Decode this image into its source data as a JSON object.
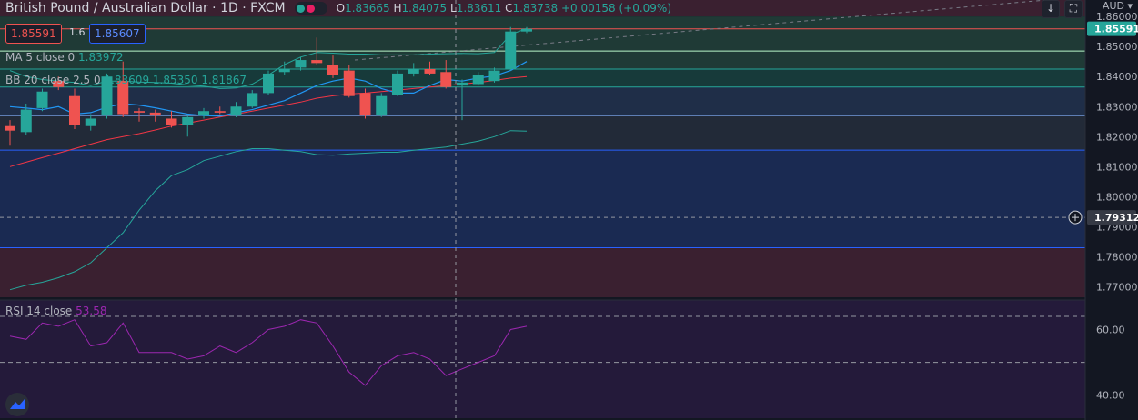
{
  "header": {
    "symbol": "British Pound / Australian Dollar",
    "interval": "1D",
    "exchange": "FXCM",
    "ohlc": {
      "o_label": "O",
      "o": "1.83665",
      "h_label": "H",
      "h": "1.84075",
      "l_label": "L",
      "l": "1.83611",
      "c_label": "C",
      "c": "1.83738",
      "change": "+0.00158 (+0.09%)"
    }
  },
  "trade": {
    "sell": "1.85591",
    "spread": "1.6",
    "buy": "1.85607"
  },
  "legends": {
    "ma": {
      "label": "MA 5 close 0",
      "value": "1.83972"
    },
    "bb": {
      "label": "BB 20 close 2.5 0",
      "v1": "1.83609",
      "v2": "1.85350",
      "v3": "1.81867"
    },
    "rsi": {
      "label": "RSI 14 close",
      "value": "53.58"
    }
  },
  "axis": {
    "currency": "AUD",
    "price_ticks": [
      "1.86000",
      "1.85000",
      "1.84000",
      "1.83000",
      "1.82000",
      "1.81000",
      "1.80000",
      "1.79000",
      "1.78000",
      "1.77000"
    ],
    "last_price": "1.85591",
    "crosshair_price": "1.79312",
    "rsi_ticks": [
      "60.00",
      "40.00"
    ]
  },
  "colors": {
    "up": "#26a69a",
    "down": "#ef5350",
    "ma": "#2196f3",
    "bb_band": "#26a69a",
    "bb_basis": "#f23645",
    "rsi": "#9c27b0"
  },
  "icons": {
    "down_arrow_button": "down-arrow-icon",
    "fullscreen_button": "fullscreen-icon",
    "crosshair_label": "plus-circle-icon",
    "logo": "tradingview-logo"
  },
  "chart_data": {
    "type": "candlestick",
    "price_range": [
      1.7665,
      1.8655
    ],
    "rsi_range": [
      33,
      69
    ],
    "candles": [
      {
        "o": 1.8235,
        "h": 1.8255,
        "l": 1.817,
        "c": 1.822
      },
      {
        "o": 1.8215,
        "h": 1.831,
        "l": 1.8205,
        "c": 1.829
      },
      {
        "o": 1.8295,
        "h": 1.836,
        "l": 1.8285,
        "c": 1.835
      },
      {
        "o": 1.8385,
        "h": 1.84,
        "l": 1.8355,
        "c": 1.8365
      },
      {
        "o": 1.8335,
        "h": 1.836,
        "l": 1.8225,
        "c": 1.824
      },
      {
        "o": 1.8235,
        "h": 1.8275,
        "l": 1.822,
        "c": 1.826
      },
      {
        "o": 1.827,
        "h": 1.841,
        "l": 1.826,
        "c": 1.84
      },
      {
        "o": 1.8385,
        "h": 1.845,
        "l": 1.8265,
        "c": 1.8275
      },
      {
        "o": 1.8285,
        "h": 1.8295,
        "l": 1.825,
        "c": 1.828
      },
      {
        "o": 1.828,
        "h": 1.829,
        "l": 1.825,
        "c": 1.827
      },
      {
        "o": 1.826,
        "h": 1.8285,
        "l": 1.823,
        "c": 1.824
      },
      {
        "o": 1.824,
        "h": 1.827,
        "l": 1.82,
        "c": 1.8265
      },
      {
        "o": 1.827,
        "h": 1.8295,
        "l": 1.826,
        "c": 1.8285
      },
      {
        "o": 1.8285,
        "h": 1.83,
        "l": 1.8275,
        "c": 1.828
      },
      {
        "o": 1.827,
        "h": 1.8315,
        "l": 1.8265,
        "c": 1.83
      },
      {
        "o": 1.83,
        "h": 1.8355,
        "l": 1.8295,
        "c": 1.8345
      },
      {
        "o": 1.8345,
        "h": 1.842,
        "l": 1.834,
        "c": 1.841
      },
      {
        "o": 1.8415,
        "h": 1.845,
        "l": 1.8405,
        "c": 1.8425
      },
      {
        "o": 1.843,
        "h": 1.8465,
        "l": 1.842,
        "c": 1.8455
      },
      {
        "o": 1.8455,
        "h": 1.853,
        "l": 1.844,
        "c": 1.8445
      },
      {
        "o": 1.844,
        "h": 1.847,
        "l": 1.8395,
        "c": 1.8405
      },
      {
        "o": 1.842,
        "h": 1.844,
        "l": 1.833,
        "c": 1.8335
      },
      {
        "o": 1.8345,
        "h": 1.836,
        "l": 1.826,
        "c": 1.827
      },
      {
        "o": 1.827,
        "h": 1.8345,
        "l": 1.8265,
        "c": 1.8335
      },
      {
        "o": 1.834,
        "h": 1.842,
        "l": 1.8335,
        "c": 1.841
      },
      {
        "o": 1.841,
        "h": 1.8445,
        "l": 1.84,
        "c": 1.8425
      },
      {
        "o": 1.8425,
        "h": 1.845,
        "l": 1.8405,
        "c": 1.841
      },
      {
        "o": 1.8415,
        "h": 1.8455,
        "l": 1.836,
        "c": 1.8365
      },
      {
        "o": 1.837,
        "h": 1.839,
        "l": 1.8255,
        "c": 1.838
      },
      {
        "o": 1.8375,
        "h": 1.8415,
        "l": 1.837,
        "c": 1.8405
      },
      {
        "o": 1.8385,
        "h": 1.843,
        "l": 1.838,
        "c": 1.842
      },
      {
        "o": 1.8425,
        "h": 1.8565,
        "l": 1.842,
        "c": 1.855
      },
      {
        "o": 1.855,
        "h": 1.8565,
        "l": 1.8545,
        "c": 1.8559
      }
    ],
    "ma5": [
      1.83,
      1.8295,
      1.829,
      1.83,
      1.8275,
      1.828,
      1.8298,
      1.831,
      1.8305,
      1.8296,
      1.8285,
      1.8275,
      1.827,
      1.8268,
      1.828,
      1.829,
      1.8305,
      1.832,
      1.8345,
      1.837,
      1.8385,
      1.8395,
      1.8385,
      1.836,
      1.8345,
      1.8345,
      1.837,
      1.839,
      1.8385,
      1.8395,
      1.8402,
      1.842,
      1.845
    ],
    "bb_upper": [
      1.842,
      1.84,
      1.839,
      1.8385,
      1.838,
      1.837,
      1.8385,
      1.8385,
      1.8382,
      1.838,
      1.8378,
      1.8372,
      1.8368,
      1.836,
      1.8362,
      1.8375,
      1.8405,
      1.844,
      1.8465,
      1.848,
      1.8478,
      1.8475,
      1.8475,
      1.8472,
      1.8472,
      1.8472,
      1.8475,
      1.8476,
      1.8477,
      1.8476,
      1.848,
      1.854,
      1.856
    ],
    "bb_basis": [
      1.81,
      1.8115,
      1.813,
      1.8145,
      1.816,
      1.8175,
      1.819,
      1.82,
      1.821,
      1.8222,
      1.8235,
      1.8245,
      1.8255,
      1.8265,
      1.8275,
      1.8285,
      1.8295,
      1.8305,
      1.8315,
      1.8328,
      1.8336,
      1.8342,
      1.8345,
      1.835,
      1.8355,
      1.836,
      1.8365,
      1.837,
      1.8375,
      1.838,
      1.8387,
      1.8395,
      1.84
    ],
    "bb_lower": [
      1.769,
      1.7705,
      1.7715,
      1.773,
      1.775,
      1.778,
      1.783,
      1.788,
      1.7955,
      1.802,
      1.807,
      1.809,
      1.812,
      1.8135,
      1.815,
      1.816,
      1.816,
      1.8155,
      1.815,
      1.814,
      1.8138,
      1.8142,
      1.8145,
      1.8148,
      1.8148,
      1.8155,
      1.816,
      1.8165,
      1.8175,
      1.8185,
      1.82,
      1.822,
      1.8218
    ],
    "rsi": [
      58,
      57,
      62,
      61,
      63,
      55,
      56,
      62,
      53,
      53,
      53,
      51,
      52,
      55,
      53,
      56,
      60,
      61,
      63,
      62,
      55,
      47,
      43,
      49,
      52,
      53,
      51,
      46,
      48,
      50,
      52,
      60,
      61
    ]
  }
}
